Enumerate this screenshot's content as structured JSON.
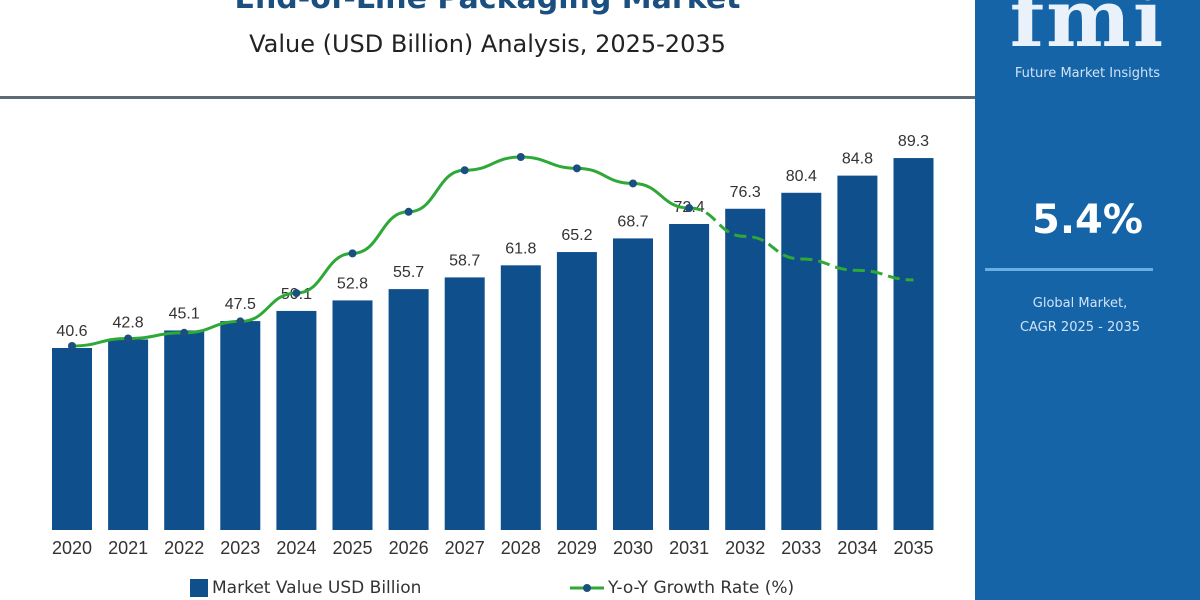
{
  "header": {
    "title": "End-of-Line Packaging Market",
    "subtitle": "Value (USD Billion) Analysis, 2025-2035"
  },
  "side_panel": {
    "logo_text": "fmi",
    "brand": "Future Market Insights",
    "cagr_value": "5.4%",
    "cagr_label_line1": "Global Market,",
    "cagr_label_line2": "CAGR 2025 - 2035",
    "color": "#1664a8"
  },
  "chart_data": {
    "type": "bar",
    "categories": [
      "2020",
      "2021",
      "2022",
      "2023",
      "2024",
      "2025",
      "2026",
      "2027",
      "2028",
      "2029",
      "2030",
      "2031",
      "2032",
      "2033",
      "2034",
      "2035"
    ],
    "series": [
      {
        "name": "Market Value USD Billion",
        "type": "bar",
        "color": "#0e4f8c",
        "values": [
          40.6,
          42.8,
          45.1,
          47.5,
          50.1,
          52.8,
          55.7,
          58.7,
          61.8,
          65.2,
          68.7,
          72.4,
          76.3,
          80.4,
          84.8,
          89.3
        ]
      },
      {
        "name": "Y-o-Y Growth Rate (%)",
        "type": "line",
        "color": "#2ea836",
        "dashed_from": "2031",
        "values_relative": [
          0.0,
          0.04,
          0.07,
          0.13,
          0.28,
          0.49,
          0.71,
          0.93,
          1.0,
          0.94,
          0.86,
          0.73,
          0.58,
          0.46,
          0.4,
          0.35
        ]
      }
    ],
    "data_labels": true,
    "grid": false,
    "y_axis_visible": false,
    "legend_position": "bottom"
  }
}
